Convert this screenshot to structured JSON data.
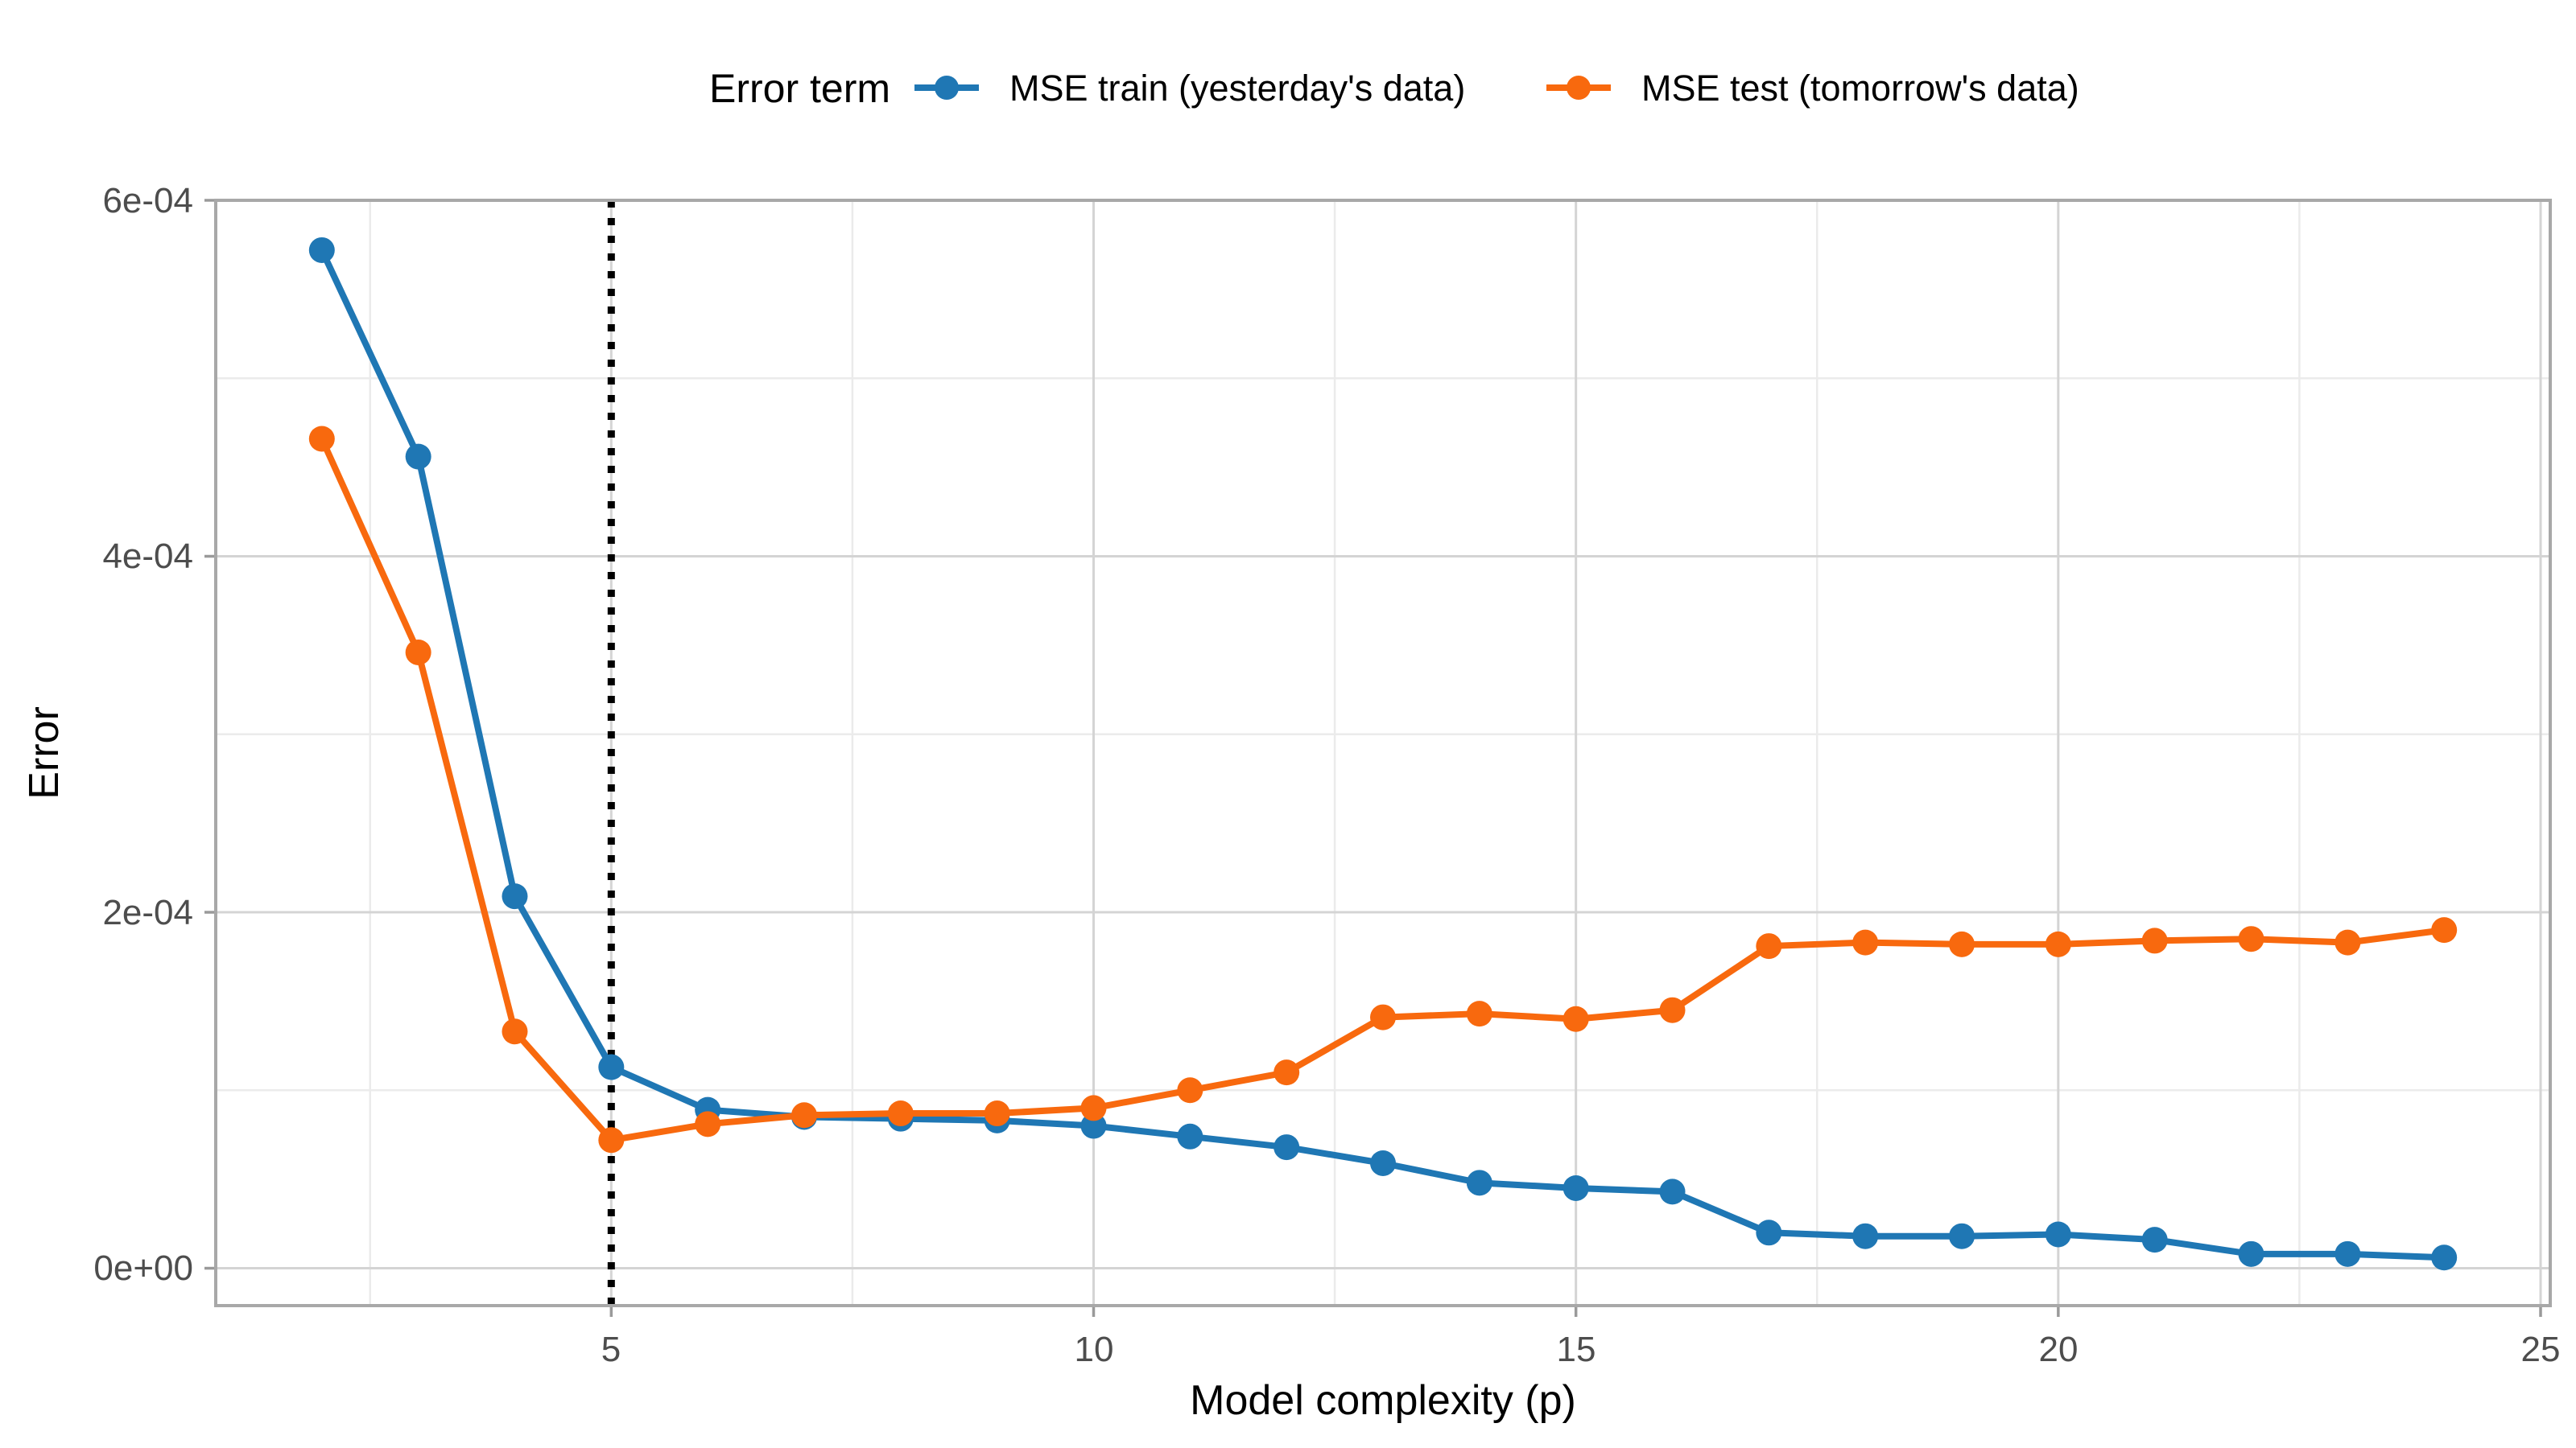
{
  "legend": {
    "title": "Error term",
    "items": [
      {
        "label": "MSE train (yesterday's data)",
        "color": "#1f77b4"
      },
      {
        "label": "MSE test (tomorrow's data)",
        "color": "#f8690e"
      }
    ]
  },
  "axes": {
    "x_title": "Model complexity (p)",
    "y_title": "Error",
    "x_tick_labels": [
      "5",
      "10",
      "15",
      "20",
      "25"
    ],
    "y_tick_labels": [
      "0e+00",
      "2e-04",
      "4e-04",
      "6e-04"
    ]
  },
  "chart_data": {
    "type": "line",
    "title": "",
    "xlabel": "Model complexity (p)",
    "ylabel": "Error",
    "xlim": [
      0.9,
      25.1
    ],
    "ylim": [
      -2.1e-05,
      0.0006
    ],
    "x_major_ticks": [
      5,
      10,
      15,
      20,
      25
    ],
    "x_minor_ticks": [
      2.5,
      7.5,
      12.5,
      17.5,
      22.5
    ],
    "y_major_ticks": [
      0,
      0.0002,
      0.0004,
      0.0006
    ],
    "y_minor_ticks": [
      0.0001,
      0.0003,
      0.0005
    ],
    "grid": true,
    "legend_position": "top",
    "vline": {
      "x": 5,
      "style": "dotted",
      "color": "#000000"
    },
    "x": [
      2,
      3,
      4,
      5,
      6,
      7,
      8,
      9,
      10,
      11,
      12,
      13,
      14,
      15,
      16,
      17,
      18,
      19,
      20,
      21,
      22,
      23,
      24
    ],
    "series": [
      {
        "name": "MSE train (yesterday's data)",
        "color": "#1f77b4",
        "values": [
          0.000572,
          0.000456,
          0.000209,
          0.000113,
          8.9e-05,
          8.5e-05,
          8.4e-05,
          8.3e-05,
          8e-05,
          7.4e-05,
          6.8e-05,
          5.9e-05,
          4.8e-05,
          4.5e-05,
          4.3e-05,
          2e-05,
          1.8e-05,
          1.8e-05,
          1.9e-05,
          1.6e-05,
          8e-06,
          8e-06,
          6e-06
        ]
      },
      {
        "name": "MSE test (tomorrow's data)",
        "color": "#f8690e",
        "values": [
          0.000466,
          0.000346,
          0.000133,
          7.2e-05,
          8.1e-05,
          8.6e-05,
          8.7e-05,
          8.7e-05,
          9e-05,
          0.0001,
          0.00011,
          0.000141,
          0.000143,
          0.00014,
          0.000145,
          0.000181,
          0.000183,
          0.000182,
          0.000182,
          0.000184,
          0.000185,
          0.000183,
          0.00019
        ]
      }
    ],
    "style": {
      "major_grid_color": "#d4d4d4",
      "minor_grid_color": "#ebebeb",
      "panel_border_color": "#a8a8a8",
      "tick_color": "#9a9a9a",
      "line_width": 8,
      "marker_radius": 16
    }
  }
}
